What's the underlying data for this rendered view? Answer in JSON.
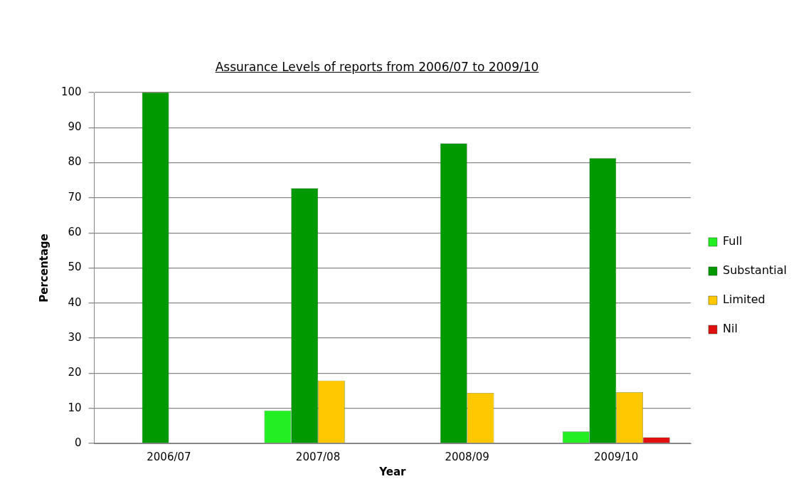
{
  "chart_data": {
    "type": "bar",
    "title": "Assurance Levels of reports from 2006/07 to 2009/10",
    "xlabel": "Year",
    "ylabel": "Percentage",
    "categories": [
      "2006/07",
      "2007/08",
      "2008/09",
      "2009/10"
    ],
    "series": [
      {
        "name": "Full",
        "color": "#22ee22",
        "values": [
          0,
          9.4,
          0,
          3.4
        ]
      },
      {
        "name": "Substantial",
        "color": "#009900",
        "values": [
          100,
          72.7,
          85.5,
          81.3
        ]
      },
      {
        "name": "Limited",
        "color": "#ffc800",
        "values": [
          0,
          17.9,
          14.4,
          14.6
        ]
      },
      {
        "name": "Nil",
        "color": "#e01010",
        "values": [
          0,
          0,
          0,
          1.7
        ]
      }
    ],
    "ylim": [
      0,
      100
    ],
    "yticks": [
      0,
      10,
      20,
      30,
      40,
      50,
      60,
      70,
      80,
      90,
      100
    ],
    "grid": "y",
    "legend": "right"
  }
}
